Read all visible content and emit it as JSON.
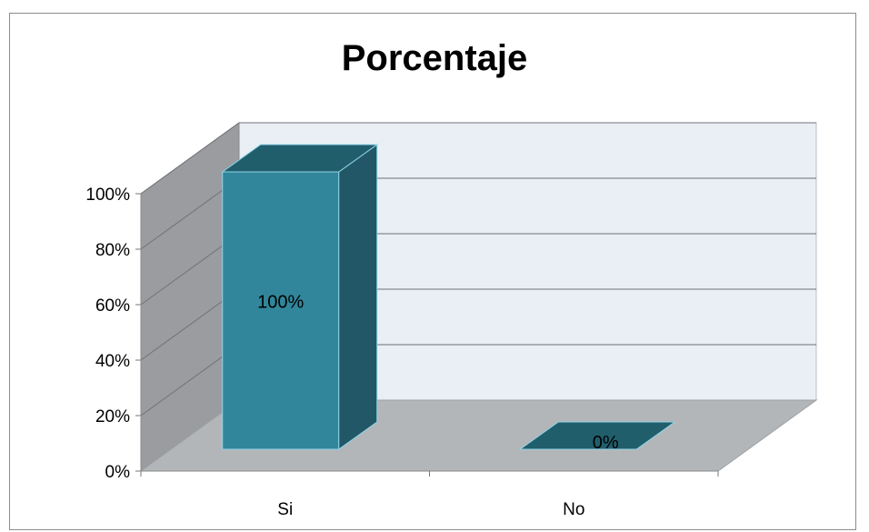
{
  "chart_data": {
    "type": "bar",
    "title": "Porcentaje",
    "categories": [
      "Si",
      "No"
    ],
    "values": [
      100,
      0
    ],
    "data_labels": [
      "100%",
      "0%"
    ],
    "ylim": [
      0,
      100
    ],
    "y_ticks": [
      "0%",
      "20%",
      "40%",
      "60%",
      "80%",
      "100%"
    ],
    "xlabel": "",
    "ylabel": "",
    "grid": true,
    "three_d": true,
    "legend": "none",
    "colors": {
      "bar_front": "#31869b",
      "bar_top": "#215e6c",
      "bar_side": "#215766",
      "back_wall": "#e9eff5",
      "side_wall": "#9a9ca0",
      "floor": "#b3b6b8"
    }
  }
}
